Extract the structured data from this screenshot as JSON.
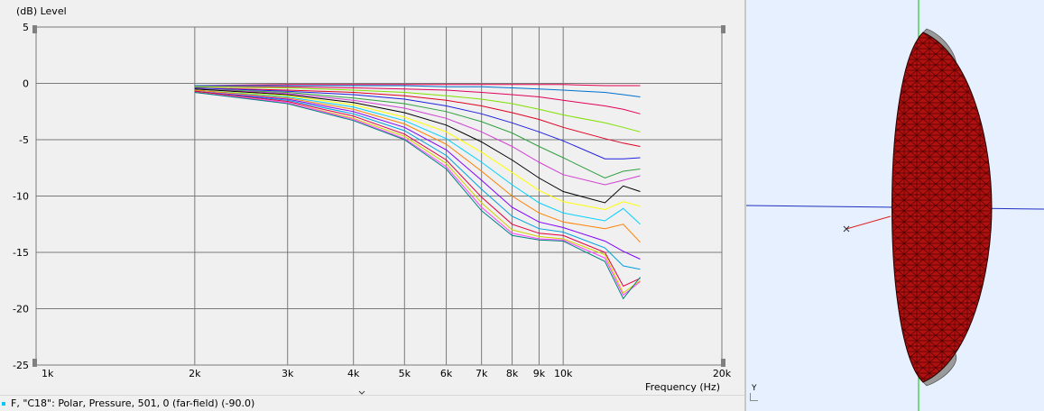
{
  "chart_data": {
    "type": "line",
    "ylabel": "(dB)  Level",
    "xlabel": "Frequency  (Hz)",
    "xscale": "log",
    "xlim": [
      1000,
      20000
    ],
    "ylim": [
      -25,
      5
    ],
    "grid": true,
    "yticks": [
      5,
      0,
      -5,
      -10,
      -15,
      -20,
      -25
    ],
    "xticks": [
      {
        "v": 1000,
        "label": "1k"
      },
      {
        "v": 2000,
        "label": "2k"
      },
      {
        "v": 3000,
        "label": "3k"
      },
      {
        "v": 4000,
        "label": "4k"
      },
      {
        "v": 5000,
        "label": "5k"
      },
      {
        "v": 6000,
        "label": "6k"
      },
      {
        "v": 7000,
        "label": "7k"
      },
      {
        "v": 8000,
        "label": "8k"
      },
      {
        "v": 9000,
        "label": "9k"
      },
      {
        "v": 10000,
        "label": "10k"
      },
      {
        "v": 20000,
        "label": "20k"
      }
    ],
    "x": [
      2000,
      3000,
      4000,
      5000,
      6000,
      7000,
      8000,
      9000,
      10000,
      12000,
      13000,
      14000
    ],
    "series": [
      {
        "color": "#e0004a",
        "values": [
          -0.2,
          -0.1,
          -0.1,
          -0.1,
          -0.1,
          -0.1,
          -0.1,
          -0.1,
          -0.1,
          -0.2,
          -0.2,
          -0.2
        ]
      },
      {
        "color": "#0070d0",
        "values": [
          -0.2,
          -0.2,
          -0.2,
          -0.2,
          -0.3,
          -0.3,
          -0.4,
          -0.5,
          -0.6,
          -0.8,
          -1.0,
          -1.2
        ]
      },
      {
        "color": "#e0005a",
        "values": [
          -0.3,
          -0.3,
          -0.4,
          -0.5,
          -0.6,
          -0.8,
          -1.0,
          -1.2,
          -1.5,
          -2.0,
          -2.3,
          -2.7
        ]
      },
      {
        "color": "#80e000",
        "values": [
          -0.3,
          -0.4,
          -0.6,
          -0.8,
          -1.1,
          -1.4,
          -1.8,
          -2.3,
          -2.8,
          -3.5,
          -3.9,
          -4.3
        ]
      },
      {
        "color": "#e00020",
        "values": [
          -0.4,
          -0.6,
          -0.8,
          -1.1,
          -1.5,
          -2.0,
          -2.6,
          -3.2,
          -3.9,
          -4.9,
          -5.3,
          -5.6
        ]
      },
      {
        "color": "#2020e0",
        "values": [
          -0.4,
          -0.7,
          -1.0,
          -1.4,
          -2.0,
          -2.7,
          -3.5,
          -4.3,
          -5.1,
          -6.7,
          -6.7,
          -6.6
        ]
      },
      {
        "color": "#30a040",
        "values": [
          -0.5,
          -0.8,
          -1.3,
          -1.8,
          -2.5,
          -3.4,
          -4.4,
          -5.6,
          -6.6,
          -8.4,
          -7.8,
          -7.6
        ]
      },
      {
        "color": "#d040d0",
        "values": [
          -0.5,
          -0.9,
          -1.5,
          -2.2,
          -3.1,
          -4.3,
          -5.6,
          -7.0,
          -8.1,
          -9.0,
          -8.6,
          -8.2
        ]
      },
      {
        "color": "#000000",
        "values": [
          -0.5,
          -1.0,
          -1.7,
          -2.6,
          -3.7,
          -5.2,
          -6.8,
          -8.4,
          -9.6,
          -10.6,
          -9.1,
          -9.6
        ]
      },
      {
        "color": "#ffff00",
        "values": [
          -0.6,
          -1.1,
          -1.9,
          -3.0,
          -4.3,
          -6.1,
          -7.9,
          -9.5,
          -10.5,
          -11.2,
          -10.5,
          -10.9
        ]
      },
      {
        "color": "#00d0ff",
        "values": [
          -0.6,
          -1.2,
          -2.1,
          -3.3,
          -4.9,
          -7.0,
          -9.0,
          -10.6,
          -11.5,
          -12.2,
          -11.1,
          -12.5
        ]
      },
      {
        "color": "#ff8000",
        "values": [
          -0.6,
          -1.3,
          -2.3,
          -3.6,
          -5.4,
          -7.8,
          -10.0,
          -11.5,
          -12.3,
          -12.9,
          -12.5,
          -14.1
        ]
      },
      {
        "color": "#8000ff",
        "values": [
          -0.7,
          -1.4,
          -2.5,
          -3.9,
          -5.9,
          -8.6,
          -11.0,
          -12.3,
          -12.8,
          -14.0,
          -14.9,
          -15.6
        ]
      },
      {
        "color": "#00a0e0",
        "values": [
          -0.7,
          -1.5,
          -2.7,
          -4.2,
          -6.4,
          -9.4,
          -11.8,
          -12.9,
          -13.2,
          -14.6,
          -16.2,
          -16.5
        ]
      },
      {
        "color": "#e00040",
        "values": [
          -0.7,
          -1.6,
          -2.9,
          -4.5,
          -6.8,
          -10.1,
          -12.5,
          -13.3,
          -13.5,
          -15.0,
          -18.0,
          -17.3
        ]
      },
      {
        "color": "#d0d000",
        "values": [
          -0.8,
          -1.7,
          -3.1,
          -4.7,
          -7.1,
          -10.6,
          -13.0,
          -13.6,
          -13.8,
          -15.2,
          -18.6,
          -17.5
        ]
      },
      {
        "color": "#ff40ff",
        "values": [
          -0.8,
          -1.7,
          -3.2,
          -4.9,
          -7.4,
          -11.0,
          -13.3,
          -13.8,
          -13.9,
          -15.5,
          -18.8,
          -17.6
        ]
      },
      {
        "color": "#008080",
        "values": [
          -0.8,
          -1.8,
          -3.3,
          -5.0,
          -7.6,
          -11.3,
          -13.5,
          -13.9,
          -14.0,
          -15.8,
          -19.1,
          -17.2
        ]
      }
    ]
  },
  "status": {
    "text": "F, \"C18\": Polar, Pressure, 501, 0 (far-field) (-90.0)"
  },
  "view3d": {
    "axis_label": "Y",
    "colors": {
      "body": "#b01010",
      "mesh": "#300000",
      "rim": "#9a9a9a",
      "x_axis": "#2030c0",
      "y_axis": "#00c000",
      "marker": "#e02020",
      "background": "#e6f0ff"
    }
  }
}
